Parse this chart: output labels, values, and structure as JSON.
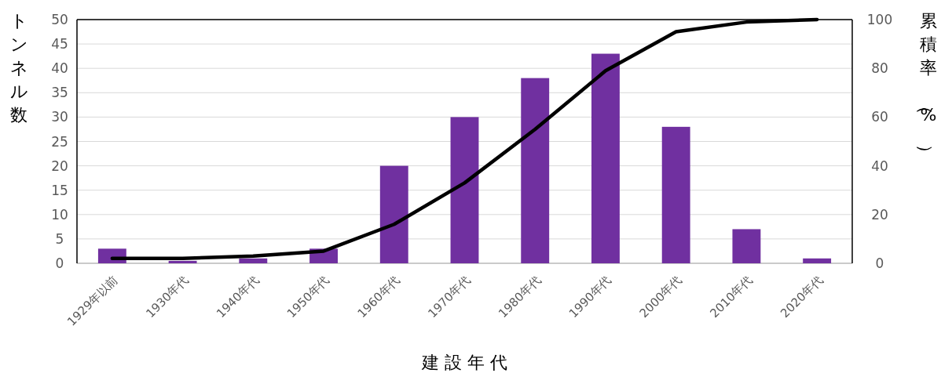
{
  "chart_data": {
    "type": "bar",
    "categories": [
      "1929年以前",
      "1930年代",
      "1940年代",
      "1950年代",
      "1960年代",
      "1970年代",
      "1980年代",
      "1990年代",
      "2000年代",
      "2010年代",
      "2020年代"
    ],
    "xlabel": "建 設 年 代",
    "ylabel": "トンネル数",
    "y2label": "累積率（%）",
    "series": [
      {
        "color": "#7030a0",
        "values": [
          3,
          0.5,
          1,
          3,
          20,
          30,
          38,
          43,
          28,
          7,
          1
        ]
      },
      {
        "type": "line",
        "axis": "y2",
        "color": "#000000",
        "values": [
          2,
          2,
          3,
          5,
          16,
          33,
          55,
          79,
          95,
          99,
          100
        ]
      }
    ],
    "ylim": [
      0,
      50
    ],
    "yticks": [
      0,
      5,
      10,
      15,
      20,
      25,
      30,
      35,
      40,
      45,
      50
    ],
    "y2lim": [
      0,
      100
    ],
    "y2ticks": [
      0,
      20,
      40,
      60,
      80,
      100
    ],
    "grid": "y"
  }
}
